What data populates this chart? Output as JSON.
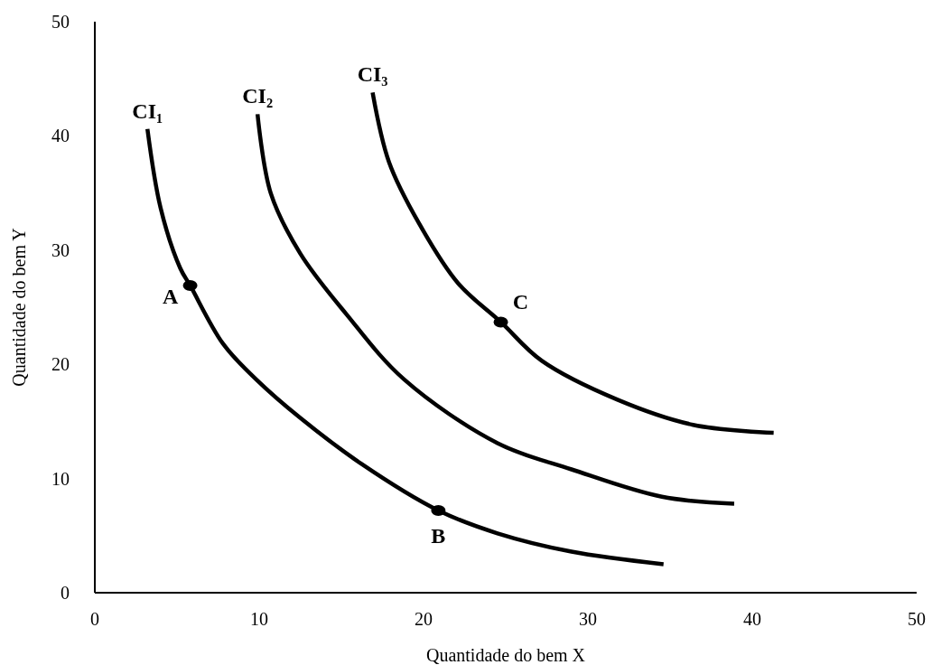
{
  "chart_data": {
    "type": "line",
    "xlabel": "Quantidade do bem X",
    "ylabel": "Quantidade do bem Y",
    "xlim": [
      0,
      50
    ],
    "xticks": [
      0,
      10,
      20,
      30,
      40,
      50
    ],
    "ylim": [
      0,
      50
    ],
    "yticks": [
      0,
      10,
      20,
      30,
      40,
      50
    ],
    "marker": "none",
    "line_style": "solid",
    "series": [
      {
        "name": "CI₁",
        "color": "#000000",
        "x": [
          3.2,
          4.0,
          5.2,
          5.8,
          7.8,
          9.8,
          12.5,
          16.2,
          20.9,
          24.5,
          29.0,
          34.6
        ],
        "values": [
          40.6,
          33.7,
          28.4,
          26.9,
          21.8,
          18.7,
          15.3,
          11.3,
          7.2,
          5.2,
          3.6,
          2.5
        ]
      },
      {
        "name": "CI₂",
        "color": "#000000",
        "x": [
          9.9,
          10.7,
          12.5,
          15.3,
          18.8,
          24.5,
          29.0,
          34.5,
          38.9
        ],
        "values": [
          41.9,
          35.0,
          29.7,
          24.4,
          18.7,
          13.1,
          10.8,
          8.4,
          7.8
        ]
      },
      {
        "name": "CI₃",
        "color": "#000000",
        "x": [
          16.9,
          17.9,
          19.7,
          22.1,
          24.7,
          27.2,
          31.8,
          36.4,
          41.3
        ],
        "values": [
          43.8,
          37.7,
          32.4,
          27.1,
          23.7,
          20.3,
          16.9,
          14.7,
          14.0
        ]
      },
      {
        "type": "scatter",
        "marker": "circle",
        "color": "#000000",
        "x": [
          5.8,
          20.9,
          24.7
        ],
        "values": [
          26.9,
          7.2,
          23.7
        ]
      }
    ],
    "annotations": [
      {
        "text": "A",
        "x": 5.8,
        "y": 26.9
      },
      {
        "text": "B",
        "x": 20.9,
        "y": 7.2
      },
      {
        "text": "C",
        "x": 24.7,
        "y": 23.7
      }
    ]
  }
}
